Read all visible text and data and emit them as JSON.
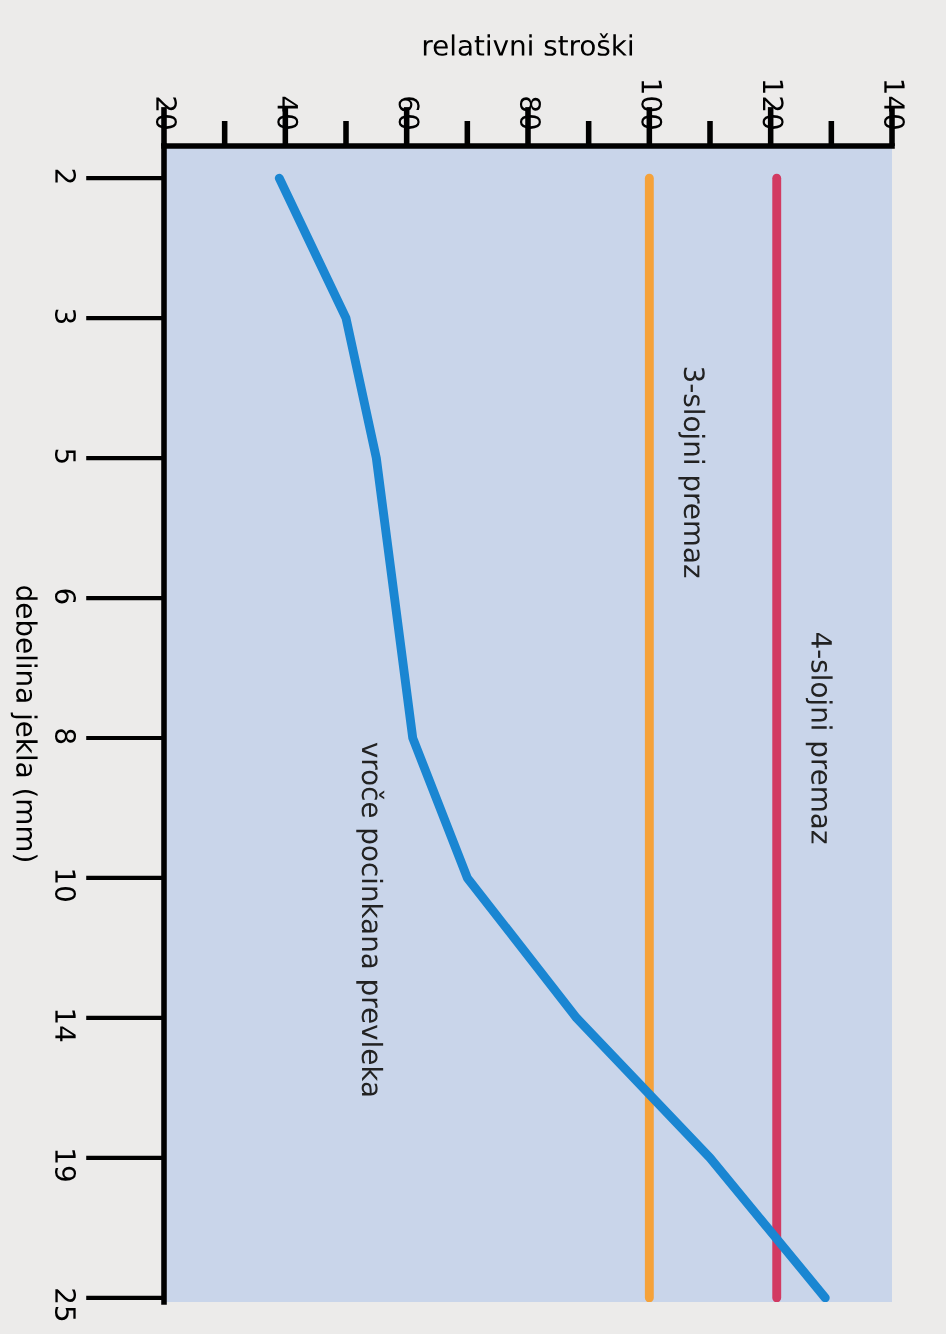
{
  "chart_data": {
    "type": "line",
    "orientation": "horizontal",
    "xlabel": "relativni stroški",
    "ylabel": "debelina jekla (mm)",
    "categories": [
      "2",
      "3",
      "5",
      "6",
      "8",
      "10",
      "14",
      "19",
      "25"
    ],
    "series": [
      {
        "name": "3-slojni premaz",
        "color": "#f5a23a",
        "values": [
          100,
          100,
          100,
          100,
          100,
          100,
          100,
          100,
          100
        ]
      },
      {
        "name": "4-slojni premaz",
        "color": "#d23a62",
        "values": [
          121,
          121,
          121,
          121,
          121,
          121,
          121,
          121,
          121
        ]
      },
      {
        "name": "vroče pocinkana prevleka",
        "color": "#1a86d2",
        "values": [
          39,
          50,
          55,
          58,
          61,
          70,
          88,
          110,
          129
        ]
      }
    ],
    "xlim": [
      20,
      140
    ],
    "xticks": [
      20,
      {
        "value": 30,
        "label": null
      },
      40,
      {
        "value": 50,
        "label": null
      },
      60,
      {
        "value": 70,
        "label": null
      },
      80,
      {
        "value": 90,
        "label": null
      },
      100,
      {
        "value": 110,
        "label": null
      },
      120,
      {
        "value": 130,
        "label": null
      },
      140
    ]
  }
}
